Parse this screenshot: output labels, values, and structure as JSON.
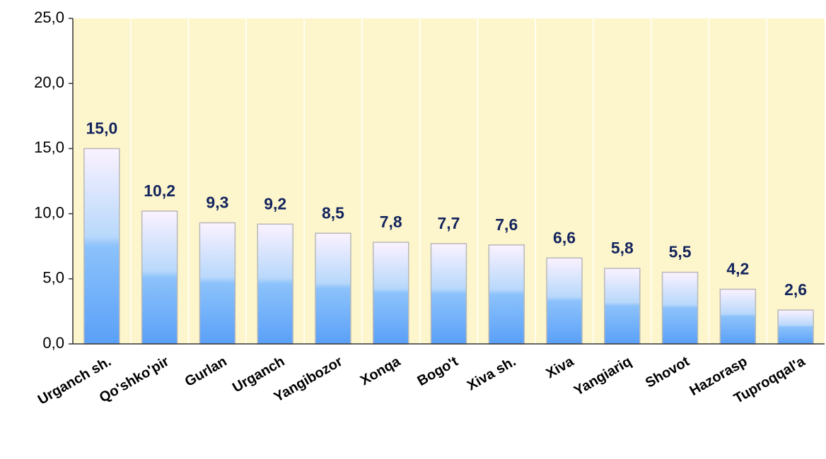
{
  "chart_data": {
    "type": "bar",
    "categories": [
      "Urganch sh.",
      "Qo'shko'pir",
      "Gurlan",
      "Urganch",
      "Yangibozor",
      "Xonqa",
      "Bogo't",
      "Xiva sh.",
      "Xiva",
      "Yangiariq",
      "Shovot",
      "Hazorasp",
      "Tuproqqal'a"
    ],
    "values": [
      15.0,
      10.2,
      9.3,
      9.2,
      8.5,
      7.8,
      7.7,
      7.6,
      6.6,
      5.8,
      5.5,
      4.2,
      2.6
    ],
    "value_labels": [
      "15,0",
      "10,2",
      "9,3",
      "9,2",
      "8,5",
      "7,8",
      "7,7",
      "7,6",
      "6,6",
      "5,8",
      "5,5",
      "4,2",
      "2,6"
    ],
    "ylim": [
      0,
      25
    ],
    "yticks": [
      {
        "value": 0,
        "label": "0,0"
      },
      {
        "value": 5,
        "label": "5,0"
      },
      {
        "value": 10,
        "label": "10,0"
      },
      {
        "value": 15,
        "label": "15,0"
      },
      {
        "value": 20,
        "label": "20,0"
      },
      {
        "value": 25,
        "label": "25,0"
      }
    ],
    "color": "#5aa0f8",
    "background": "#fdf6cc"
  }
}
